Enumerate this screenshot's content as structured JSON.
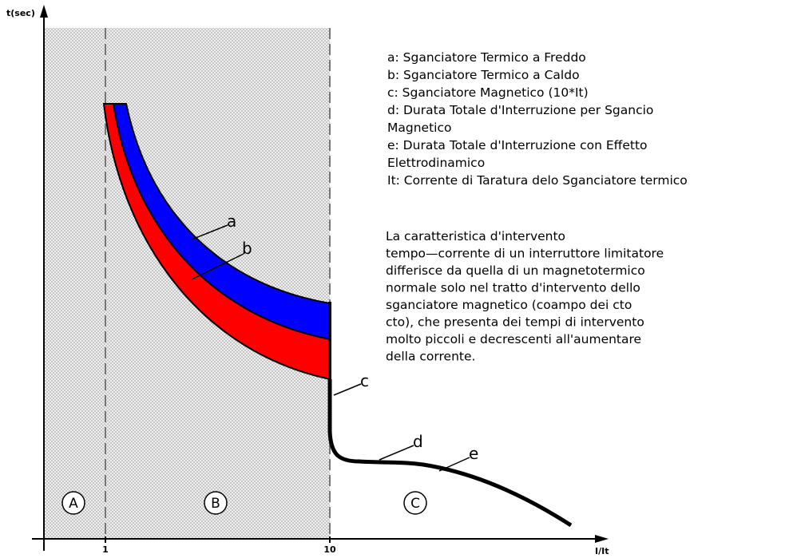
{
  "axes": {
    "y_label": "t(sec)",
    "x_label": "I/It",
    "x_ticks": [
      "1",
      "10"
    ]
  },
  "regions": [
    "A",
    "B",
    "C"
  ],
  "curve_labels": [
    "a",
    "b",
    "c",
    "d",
    "e"
  ],
  "legend_lines": [
    "a: Sganciatore Termico a Freddo",
    "b: Sganciatore Termico a Caldo",
    "c: Sganciatore Magnetico (10*It)",
    "d: Durata Totale d'Interruzione per Sgancio",
    "Magnetico",
    "e: Durata Totale d'Interruzione con Effetto",
    "Elettrodinamico",
    "It: Corrente di Taratura delo Sganciatore termico"
  ],
  "description_lines": [
    "La caratteristica d'intervento",
    "tempo—corrente di un interruttore limitatore",
    "differisce da quella di un magnetotermico",
    "normale solo nel tratto d'intervento dello",
    "sganciatore magnetico (coampo dei cto",
    "cto), che presenta dei tempi di intervento",
    "molto piccoli e decrescenti all'aumentare",
    "della corrente."
  ]
}
